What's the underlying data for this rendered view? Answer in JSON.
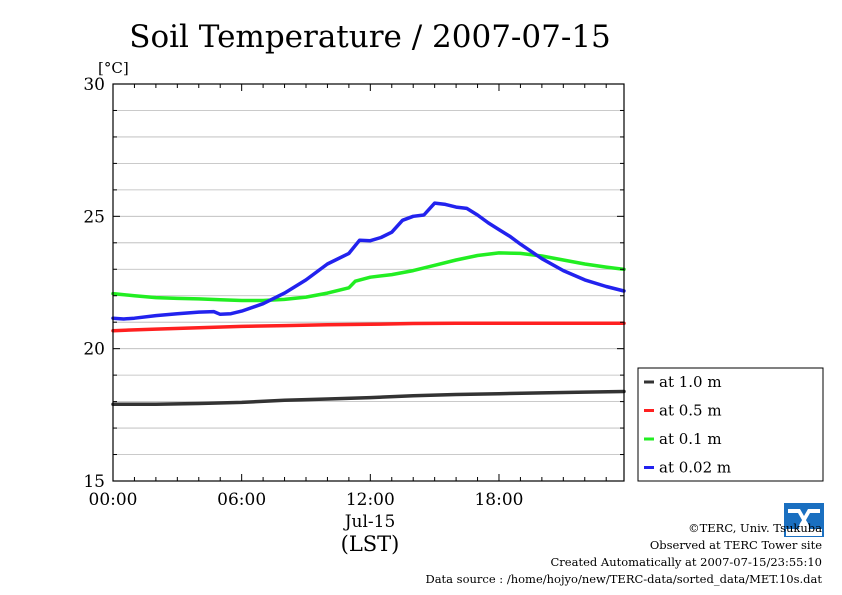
{
  "chart_data": {
    "type": "line",
    "title": "Soil Temperature / 2007-07-15",
    "ylabel": "[°C]",
    "xlabel": "(LST)",
    "date_label": "Jul-15",
    "ylim": [
      15,
      30
    ],
    "xlim": [
      0,
      23.83
    ],
    "y_ticks": [
      15,
      20,
      25,
      30
    ],
    "x_ticks": [
      {
        "value": 0,
        "label": "00:00"
      },
      {
        "value": 6,
        "label": "06:00"
      },
      {
        "value": 12,
        "label": "12:00"
      },
      {
        "value": 18,
        "label": "18:00"
      }
    ],
    "grid": "horizontal",
    "legend_position": "right",
    "series": [
      {
        "name": "at 1.0 m",
        "color": "#333333",
        "x": [
          0,
          2,
          4,
          6,
          8,
          10,
          12,
          14,
          16,
          18,
          20,
          22,
          23.83
        ],
        "y": [
          17.9,
          17.9,
          17.93,
          17.97,
          18.05,
          18.1,
          18.15,
          18.22,
          18.27,
          18.3,
          18.33,
          18.36,
          18.38
        ]
      },
      {
        "name": "at 0.5 m",
        "color": "#ff2020",
        "x": [
          0,
          2,
          4,
          6,
          8,
          10,
          12,
          14,
          16,
          18,
          20,
          22,
          23.83
        ],
        "y": [
          20.68,
          20.74,
          20.79,
          20.84,
          20.87,
          20.9,
          20.92,
          20.95,
          20.96,
          20.96,
          20.96,
          20.96,
          20.96
        ]
      },
      {
        "name": "at 0.1 m",
        "color": "#22ee22",
        "x": [
          0,
          1,
          2,
          3,
          4,
          5,
          6,
          7,
          8,
          9,
          10,
          11,
          11.3,
          12,
          13,
          14,
          15,
          16,
          17,
          18,
          19,
          20,
          21,
          22,
          23,
          23.83
        ],
        "y": [
          22.08,
          22.0,
          21.93,
          21.9,
          21.88,
          21.85,
          21.82,
          21.82,
          21.86,
          21.95,
          22.1,
          22.3,
          22.55,
          22.7,
          22.8,
          22.95,
          23.15,
          23.35,
          23.52,
          23.62,
          23.6,
          23.5,
          23.35,
          23.2,
          23.08,
          23.0
        ]
      },
      {
        "name": "at 0.02 m",
        "color": "#2222ee",
        "x": [
          0,
          0.5,
          1,
          2,
          3,
          4,
          4.7,
          5,
          5.5,
          6,
          7,
          8,
          9,
          10,
          11,
          11.5,
          12,
          12.5,
          13,
          13.5,
          14,
          14.5,
          15,
          15.5,
          16,
          16.5,
          17,
          17.5,
          18,
          18.5,
          19,
          20,
          21,
          22,
          23,
          23.83
        ],
        "y": [
          21.15,
          21.12,
          21.15,
          21.25,
          21.32,
          21.38,
          21.4,
          21.3,
          21.32,
          21.42,
          21.7,
          22.1,
          22.6,
          23.2,
          23.6,
          24.1,
          24.08,
          24.2,
          24.4,
          24.85,
          25.0,
          25.05,
          25.5,
          25.45,
          25.35,
          25.3,
          25.05,
          24.75,
          24.5,
          24.25,
          23.95,
          23.4,
          22.95,
          22.6,
          22.35,
          22.18
        ]
      }
    ]
  },
  "footer": {
    "copyright": "©TERC, Univ. Tsukuba",
    "site": "Observed at TERC Tower site",
    "created": "Created Automatically at 2007-07-15/23:55:10",
    "source": "Data source : /home/hojyo/new/TERC-data/sorted_data/MET.10s.dat"
  },
  "logo": {
    "text": "TERC",
    "color": "#1a6fc0"
  }
}
